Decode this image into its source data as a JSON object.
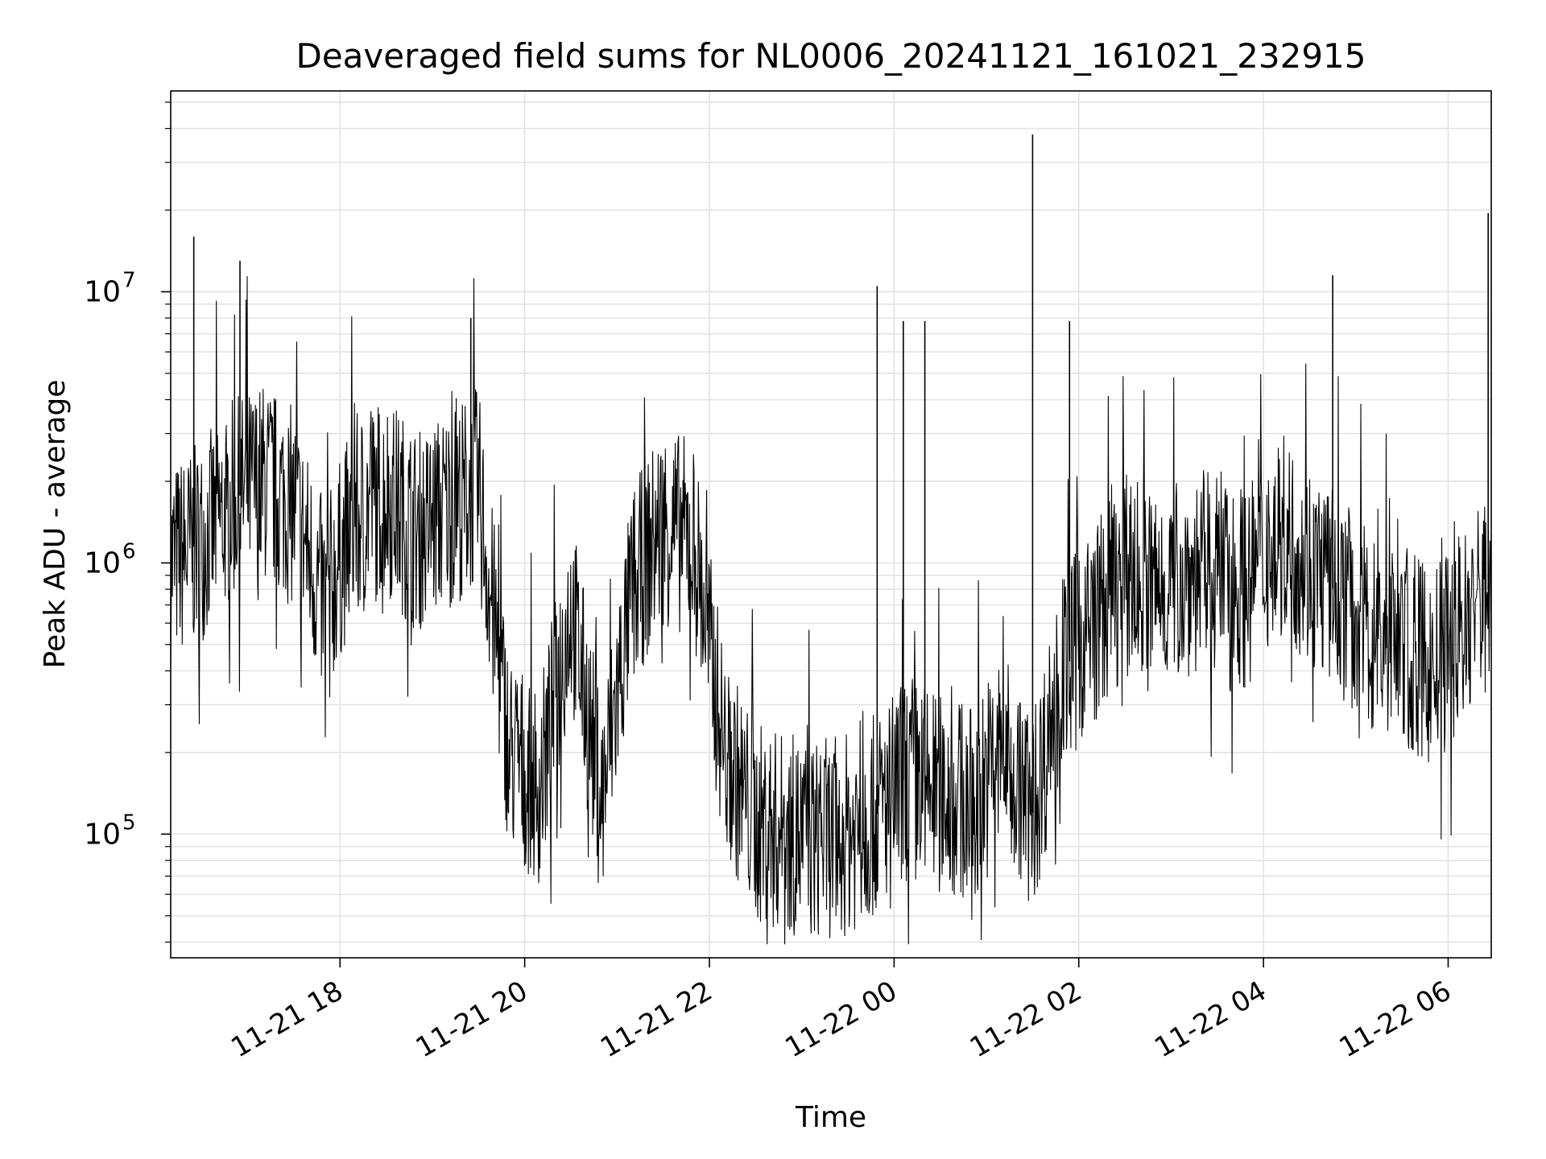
{
  "chart_data": {
    "type": "line",
    "title": "Deaveraged field sums for NL0006_20241121_161021_232915",
    "xlabel": "Time",
    "ylabel": "Peak ADU - average",
    "xlim": [
      "2024-11-21 16:10",
      "2024-11-22 06:28"
    ],
    "ylim": [
      35000,
      55000000
    ],
    "yscale": "log",
    "grid": true,
    "series_color": "#000000",
    "x_tick_labels": [
      "11-21 18",
      "11-21 20",
      "11-21 22",
      "11-22 00",
      "11-22 02",
      "11-22 04",
      "11-22 06"
    ],
    "y_tick_labels": [
      {
        "base": "10",
        "exp": "5",
        "value": 100000
      },
      {
        "base": "10",
        "exp": "6",
        "value": 1000000
      },
      {
        "base": "10",
        "exp": "7",
        "value": 10000000
      }
    ],
    "series": [
      {
        "x": [
          "2024-11-21 16:10",
          "2024-11-21 16:30",
          "2024-11-21 16:50",
          "2024-11-21 17:10",
          "2024-11-21 17:30",
          "2024-11-21 17:50",
          "2024-11-21 18:10",
          "2024-11-21 18:30",
          "2024-11-21 18:50",
          "2024-11-21 19:10",
          "2024-11-21 19:30",
          "2024-11-21 19:50",
          "2024-11-21 20:10",
          "2024-11-21 20:30",
          "2024-11-21 20:50",
          "2024-11-21 21:10",
          "2024-11-21 21:30",
          "2024-11-21 21:50",
          "2024-11-21 22:10",
          "2024-11-21 22:30",
          "2024-11-21 22:50",
          "2024-11-21 23:10",
          "2024-11-21 23:30",
          "2024-11-21 23:50",
          "2024-11-22 00:10",
          "2024-11-22 00:30",
          "2024-11-22 00:50",
          "2024-11-22 01:10",
          "2024-11-22 01:30",
          "2024-11-22 01:50",
          "2024-11-22 02:10",
          "2024-11-22 02:30",
          "2024-11-22 02:50",
          "2024-11-22 03:10",
          "2024-11-22 03:30",
          "2024-11-22 03:50",
          "2024-11-22 04:10",
          "2024-11-22 04:30",
          "2024-11-22 04:50",
          "2024-11-22 05:10",
          "2024-11-22 05:30",
          "2024-11-22 05:50",
          "2024-11-22 06:10",
          "2024-11-22 06:25"
        ],
        "y": [
          1000000,
          1200000,
          1700000,
          2000000,
          1600000,
          700000,
          1500000,
          1800000,
          1300000,
          1600000,
          1900000,
          200000,
          150000,
          700000,
          130000,
          800000,
          1400000,
          1200000,
          200000,
          110000,
          100000,
          95000,
          100000,
          120000,
          170000,
          140000,
          130000,
          200000,
          120000,
          400000,
          600000,
          900000,
          800000,
          900000,
          950000,
          800000,
          1300000,
          1000000,
          750000,
          550000,
          500000,
          400000,
          600000,
          800000
        ],
        "spikes": [
          {
            "x": "2024-11-21 16:25",
            "y": 16000000
          },
          {
            "x": "2024-11-21 16:55",
            "y": 13000000
          },
          {
            "x": "2024-11-21 19:25",
            "y": 8000000
          },
          {
            "x": "2024-11-21 23:49",
            "y": 10500000
          },
          {
            "x": "2024-11-22 00:06",
            "y": 7800000
          },
          {
            "x": "2024-11-22 00:20",
            "y": 7800000
          },
          {
            "x": "2024-11-22 01:30",
            "y": 38000000
          },
          {
            "x": "2024-11-22 01:54",
            "y": 7800000
          },
          {
            "x": "2024-11-22 04:45",
            "y": 11500000
          },
          {
            "x": "2024-11-22 06:26",
            "y": 19500000
          }
        ]
      }
    ]
  }
}
